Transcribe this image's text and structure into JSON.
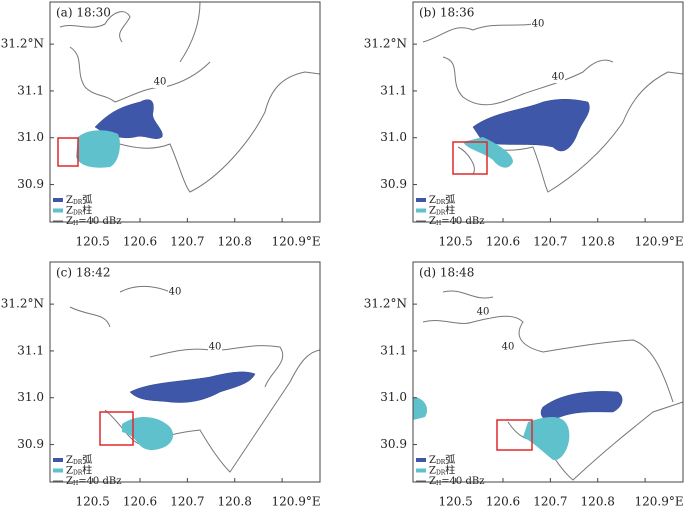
{
  "panels": [
    {
      "label": "(a) 18:30"
    },
    {
      "label": "(b) 18:36"
    },
    {
      "label": "(c) 18:42"
    },
    {
      "label": "(d) 18:48"
    }
  ],
  "xlim": [
    120.41,
    120.98
  ],
  "ylim": [
    30.82,
    31.29
  ],
  "xticks": [
    120.5,
    120.6,
    120.7,
    120.8,
    {
      "value": 120.9,
      "label": "120.9°E"
    }
  ],
  "yticks": [
    30.9,
    {
      "value": 31.0,
      "label": "31.0"
    },
    31.1,
    {
      "value": 31.2,
      "label": "31.2°N"
    }
  ],
  "legend": [
    {
      "symbol": "Z",
      "subscript": "DR",
      "text": "弧",
      "color": "#3f57a8"
    },
    {
      "symbol": "Z",
      "subscript": "DR",
      "text": "柱",
      "color": "#5fc1cb"
    },
    {
      "symbol": "Z",
      "subscript": "H",
      "text": "=40 dBz",
      "color": "#666666"
    }
  ],
  "contour_label": 40
}
